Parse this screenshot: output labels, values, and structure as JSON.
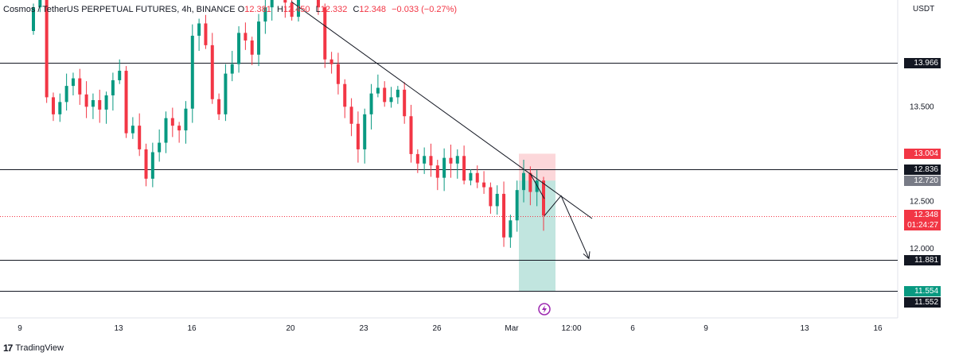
{
  "header": {
    "symbol": "Cosmos / TetherUS PERPETUAL FUTURES, 4h, BINANCE",
    "o_label": "O",
    "o": "12.381",
    "h_label": "H",
    "h": "12.450",
    "l_label": "L",
    "l": "12.332",
    "c_label": "C",
    "c": "12.348",
    "change": "−0.033 (−0.27%)"
  },
  "currency": "USDT",
  "footer": {
    "brand": "TradingView"
  },
  "tags": {
    "level_13966": "13.966",
    "stop_13004": "13.004",
    "level_12836": "12.836",
    "entry_12720": "12.720",
    "last_price": "12.348",
    "countdown": "01:24:27",
    "level_11881": "11.881",
    "target_11554": "11.554",
    "level_11552": "11.552"
  },
  "colors": {
    "up": "#089981",
    "down": "#f23645",
    "stop_zone": "rgba(242,54,69,0.2)",
    "target_zone": "rgba(8,153,129,0.25)",
    "stop_tag": "#f23645",
    "target_tag": "#089981",
    "entry_tag": "#787b86",
    "level_tag": "#131722"
  },
  "chart_data": {
    "type": "candlestick",
    "symbol": "ATOMUSDT.P",
    "timeframe": "4h",
    "y_ticks": [
      "13.500",
      "12.500",
      "12.000"
    ],
    "ylim": [
      11.5,
      14.8
    ],
    "x_ticks": [
      "9",
      "13",
      "16",
      "20",
      "23",
      "26",
      "Mar",
      "12:00",
      "6",
      "9",
      "13",
      "16"
    ],
    "horizontal_levels": [
      13.966,
      12.836,
      11.881,
      11.552
    ],
    "position": {
      "side": "short",
      "entry": 12.72,
      "stop": 13.004,
      "target": 11.554
    },
    "last_price": 12.348,
    "trendline": {
      "from": [
        0.0,
        14.8
      ],
      "to": [
        1.0,
        12.36
      ]
    },
    "projection_path": [
      [
        12.348
      ],
      [
        12.56
      ],
      [
        11.88
      ]
    ],
    "close_series": [
      14.55,
      14.95,
      13.6,
      13.42,
      13.55,
      13.72,
      13.8,
      13.63,
      13.5,
      13.57,
      13.47,
      13.62,
      13.78,
      13.88,
      13.22,
      13.3,
      13.05,
      12.74,
      13.02,
      13.12,
      13.38,
      13.3,
      13.25,
      13.48,
      14.25,
      14.38,
      14.15,
      13.58,
      13.42,
      13.85,
      13.95,
      14.28,
      14.2,
      14.05,
      14.4,
      14.55,
      14.78,
      14.95,
      14.6,
      14.45,
      14.82,
      14.78,
      14.7,
      14.55,
      14.0,
      13.95,
      13.74,
      13.5,
      13.32,
      13.05,
      13.42,
      13.64,
      13.7,
      13.55,
      13.6,
      13.68,
      13.4,
      13.0,
      12.9,
      12.98,
      12.88,
      12.75,
      12.96,
      12.9,
      12.98,
      12.72,
      12.8,
      12.7,
      12.65,
      12.45,
      12.58,
      12.12,
      12.3,
      12.62,
      12.8,
      12.6,
      12.72,
      12.35
    ]
  }
}
